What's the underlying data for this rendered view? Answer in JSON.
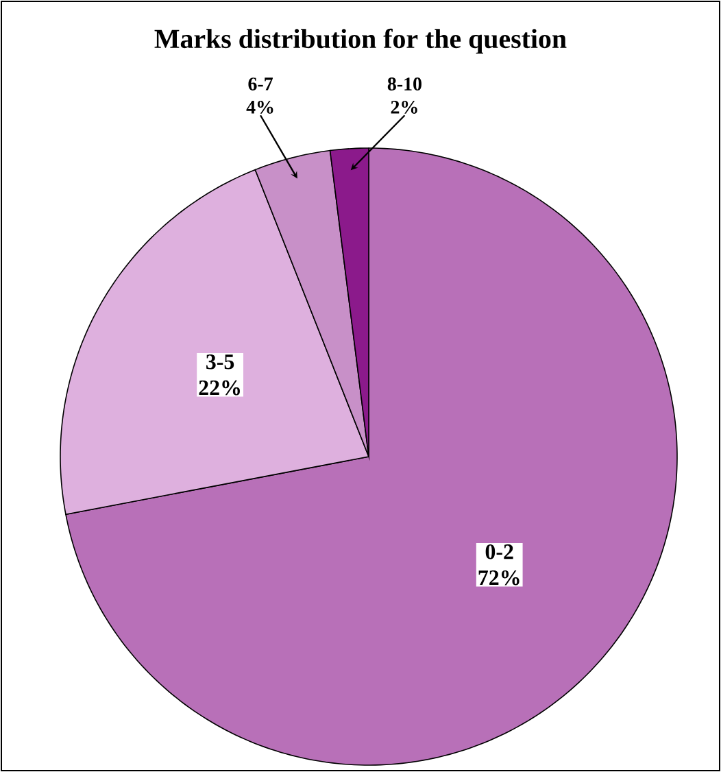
{
  "chart_data": {
    "type": "pie",
    "title": "Marks distribution for the question",
    "categories": [
      "0-2",
      "3-5",
      "6-7",
      "8-10"
    ],
    "values": [
      72,
      22,
      4,
      2
    ],
    "value_labels": [
      "72%",
      "22%",
      "4%",
      "2%"
    ],
    "colors": [
      "#b870b8",
      "#deb0de",
      "#c890c8",
      "#8b1a8b"
    ]
  }
}
